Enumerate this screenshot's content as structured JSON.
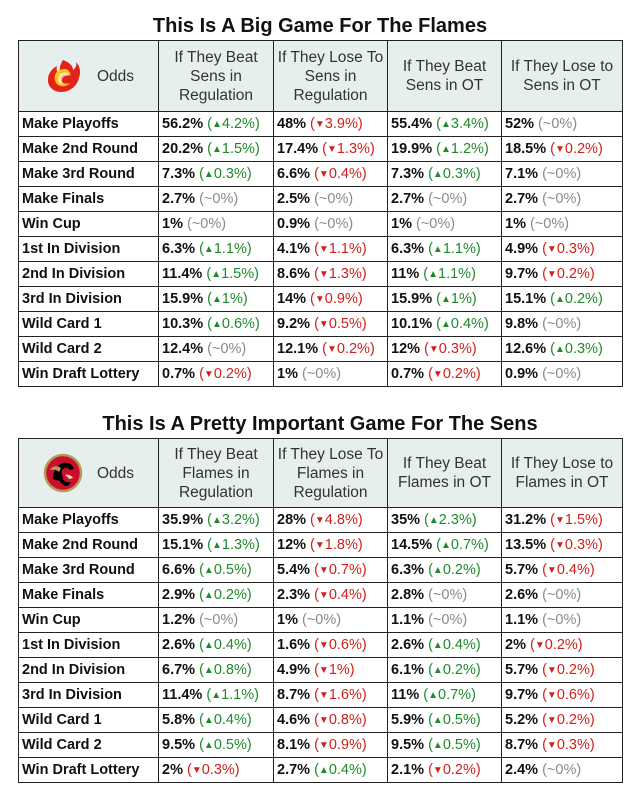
{
  "colors": {
    "up": "#1e8a2a",
    "down": "#d0201c",
    "flat": "#8a8a8a",
    "header_bg": "#e7efee"
  },
  "tables": [
    {
      "title": "This Is A Big Game For The Flames",
      "logo": "flames-logo-icon",
      "odds_label": "Odds",
      "columns": [
        "If They Beat Sens in Regulation",
        "If They Lose To Sens in Regulation",
        "If They Beat Sens in OT",
        "If They Lose to Sens in OT"
      ],
      "rows": [
        {
          "label": "Make Playoffs",
          "cells": [
            [
              "56.2%",
              "up",
              "4.2%"
            ],
            [
              "48%",
              "down",
              "3.9%"
            ],
            [
              "55.4%",
              "up",
              "3.4%"
            ],
            [
              "52%",
              "flat",
              "0%"
            ]
          ]
        },
        {
          "label": "Make 2nd Round",
          "cells": [
            [
              "20.2%",
              "up",
              "1.5%"
            ],
            [
              "17.4%",
              "down",
              "1.3%"
            ],
            [
              "19.9%",
              "up",
              "1.2%"
            ],
            [
              "18.5%",
              "down",
              "0.2%"
            ]
          ]
        },
        {
          "label": "Make 3rd Round",
          "cells": [
            [
              "7.3%",
              "up",
              "0.3%"
            ],
            [
              "6.6%",
              "down",
              "0.4%"
            ],
            [
              "7.3%",
              "up",
              "0.3%"
            ],
            [
              "7.1%",
              "flat",
              "0%"
            ]
          ]
        },
        {
          "label": "Make Finals",
          "cells": [
            [
              "2.7%",
              "flat",
              "0%"
            ],
            [
              "2.5%",
              "flat",
              "0%"
            ],
            [
              "2.7%",
              "flat",
              "0%"
            ],
            [
              "2.7%",
              "flat",
              "0%"
            ]
          ]
        },
        {
          "label": "Win Cup",
          "cells": [
            [
              "1%",
              "flat",
              "0%"
            ],
            [
              "0.9%",
              "flat",
              "0%"
            ],
            [
              "1%",
              "flat",
              "0%"
            ],
            [
              "1%",
              "flat",
              "0%"
            ]
          ]
        },
        {
          "label": "1st In Division",
          "cells": [
            [
              "6.3%",
              "up",
              "1.1%"
            ],
            [
              "4.1%",
              "down",
              "1.1%"
            ],
            [
              "6.3%",
              "up",
              "1.1%"
            ],
            [
              "4.9%",
              "down",
              "0.3%"
            ]
          ]
        },
        {
          "label": "2nd In Division",
          "cells": [
            [
              "11.4%",
              "up",
              "1.5%"
            ],
            [
              "8.6%",
              "down",
              "1.3%"
            ],
            [
              "11%",
              "up",
              "1.1%"
            ],
            [
              "9.7%",
              "down",
              "0.2%"
            ]
          ]
        },
        {
          "label": "3rd In Division",
          "cells": [
            [
              "15.9%",
              "up",
              "1%"
            ],
            [
              "14%",
              "down",
              "0.9%"
            ],
            [
              "15.9%",
              "up",
              "1%"
            ],
            [
              "15.1%",
              "up",
              "0.2%"
            ]
          ]
        },
        {
          "label": "Wild Card 1",
          "cells": [
            [
              "10.3%",
              "up",
              "0.6%"
            ],
            [
              "9.2%",
              "down",
              "0.5%"
            ],
            [
              "10.1%",
              "up",
              "0.4%"
            ],
            [
              "9.8%",
              "flat",
              "0%"
            ]
          ]
        },
        {
          "label": "Wild Card 2",
          "cells": [
            [
              "12.4%",
              "flat",
              "0%"
            ],
            [
              "12.1%",
              "down",
              "0.2%"
            ],
            [
              "12%",
              "down",
              "0.3%"
            ],
            [
              "12.6%",
              "up",
              "0.3%"
            ]
          ]
        },
        {
          "label": "Win Draft Lottery",
          "cells": [
            [
              "0.7%",
              "down",
              "0.2%"
            ],
            [
              "1%",
              "flat",
              "0%"
            ],
            [
              "0.7%",
              "down",
              "0.2%"
            ],
            [
              "0.9%",
              "flat",
              "0%"
            ]
          ]
        }
      ]
    },
    {
      "title": "This Is A Pretty Important Game For The Sens",
      "logo": "senators-logo-icon",
      "odds_label": "Odds",
      "columns": [
        "If They Beat Flames in Regulation",
        "If They Lose To Flames in Regulation",
        "If They Beat Flames in OT",
        "If They Lose to Flames in OT"
      ],
      "rows": [
        {
          "label": "Make Playoffs",
          "cells": [
            [
              "35.9%",
              "up",
              "3.2%"
            ],
            [
              "28%",
              "down",
              "4.8%"
            ],
            [
              "35%",
              "up",
              "2.3%"
            ],
            [
              "31.2%",
              "down",
              "1.5%"
            ]
          ]
        },
        {
          "label": "Make 2nd Round",
          "cells": [
            [
              "15.1%",
              "up",
              "1.3%"
            ],
            [
              "12%",
              "down",
              "1.8%"
            ],
            [
              "14.5%",
              "up",
              "0.7%"
            ],
            [
              "13.5%",
              "down",
              "0.3%"
            ]
          ]
        },
        {
          "label": "Make 3rd Round",
          "cells": [
            [
              "6.6%",
              "up",
              "0.5%"
            ],
            [
              "5.4%",
              "down",
              "0.7%"
            ],
            [
              "6.3%",
              "up",
              "0.2%"
            ],
            [
              "5.7%",
              "down",
              "0.4%"
            ]
          ]
        },
        {
          "label": "Make Finals",
          "cells": [
            [
              "2.9%",
              "up",
              "0.2%"
            ],
            [
              "2.3%",
              "down",
              "0.4%"
            ],
            [
              "2.8%",
              "flat",
              "0%"
            ],
            [
              "2.6%",
              "flat",
              "0%"
            ]
          ]
        },
        {
          "label": "Win Cup",
          "cells": [
            [
              "1.2%",
              "flat",
              "0%"
            ],
            [
              "1%",
              "flat",
              "0%"
            ],
            [
              "1.1%",
              "flat",
              "0%"
            ],
            [
              "1.1%",
              "flat",
              "0%"
            ]
          ]
        },
        {
          "label": "1st In Division",
          "cells": [
            [
              "2.6%",
              "up",
              "0.4%"
            ],
            [
              "1.6%",
              "down",
              "0.6%"
            ],
            [
              "2.6%",
              "up",
              "0.4%"
            ],
            [
              "2%",
              "down",
              "0.2%"
            ]
          ]
        },
        {
          "label": "2nd In Division",
          "cells": [
            [
              "6.7%",
              "up",
              "0.8%"
            ],
            [
              "4.9%",
              "down",
              "1%"
            ],
            [
              "6.1%",
              "up",
              "0.2%"
            ],
            [
              "5.7%",
              "down",
              "0.2%"
            ]
          ]
        },
        {
          "label": "3rd In Division",
          "cells": [
            [
              "11.4%",
              "up",
              "1.1%"
            ],
            [
              "8.7%",
              "down",
              "1.6%"
            ],
            [
              "11%",
              "up",
              "0.7%"
            ],
            [
              "9.7%",
              "down",
              "0.6%"
            ]
          ]
        },
        {
          "label": "Wild Card 1",
          "cells": [
            [
              "5.8%",
              "up",
              "0.4%"
            ],
            [
              "4.6%",
              "down",
              "0.8%"
            ],
            [
              "5.9%",
              "up",
              "0.5%"
            ],
            [
              "5.2%",
              "down",
              "0.2%"
            ]
          ]
        },
        {
          "label": "Wild Card 2",
          "cells": [
            [
              "9.5%",
              "up",
              "0.5%"
            ],
            [
              "8.1%",
              "down",
              "0.9%"
            ],
            [
              "9.5%",
              "up",
              "0.5%"
            ],
            [
              "8.7%",
              "down",
              "0.3%"
            ]
          ]
        },
        {
          "label": "Win Draft Lottery",
          "cells": [
            [
              "2%",
              "down",
              "0.3%"
            ],
            [
              "2.7%",
              "up",
              "0.4%"
            ],
            [
              "2.1%",
              "down",
              "0.2%"
            ],
            [
              "2.4%",
              "flat",
              "0%"
            ]
          ]
        }
      ]
    }
  ]
}
